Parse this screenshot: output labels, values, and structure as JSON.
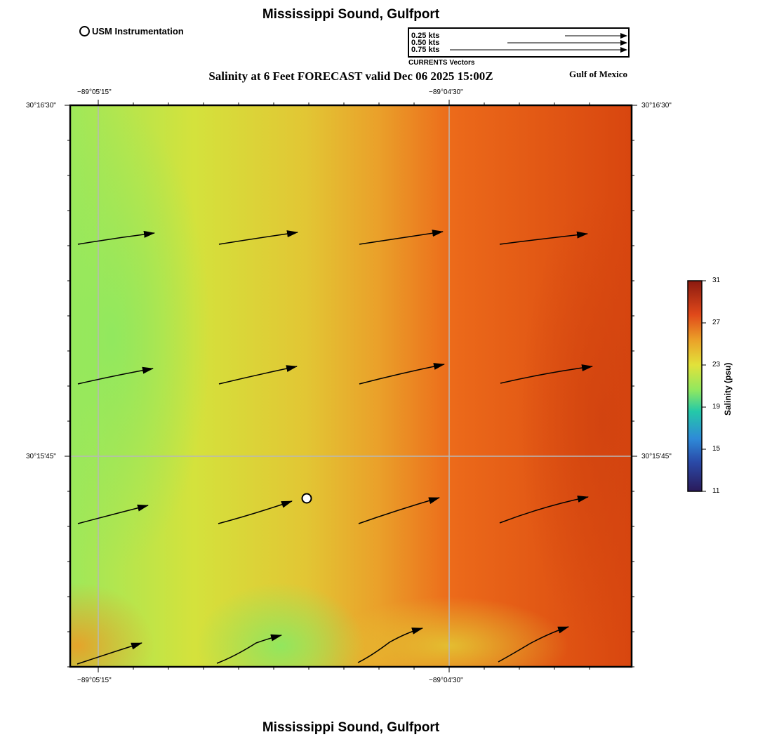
{
  "title": "Mississippi Sound, Gulfport",
  "footer_title": "Mississippi Sound, Gulfport",
  "subtitle": "Salinity at 6 Feet FORECAST valid Dec 06 2025 15:00Z",
  "region_label": "Gulf of Mexico",
  "instrument_legend": {
    "label": "USM Instrumentation",
    "icon": "open-circle-icon"
  },
  "vector_legend": {
    "caption": "CURRENTS Vectors",
    "entries": [
      "0.25 kts",
      "0.50 kts",
      "0.75 kts"
    ],
    "speeds_kts": [
      0.25,
      0.5,
      0.75
    ]
  },
  "axes": {
    "top_ticks": [
      "−89°05'15\"",
      "−89°04'30\""
    ],
    "bottom_ticks": [
      "−89°05'15\"",
      "−89°04'30\""
    ],
    "left_ticks": [
      "30°16'30\"",
      "30°15'45\""
    ],
    "right_ticks": [
      "30°16'30\"",
      "30°15'45\""
    ]
  },
  "colorbar": {
    "title": "Salinity (psu)",
    "ticks": [
      "31",
      "27",
      "23",
      "19",
      "15",
      "11"
    ],
    "min": 11,
    "max": 31,
    "colors": [
      "#2a1a5a",
      "#2e6fd8",
      "#24c9a8",
      "#8fe860",
      "#e2e23a",
      "#eb9a28",
      "#e0481a",
      "#8a1a10"
    ]
  },
  "salinity_colors": {
    "low": "#8fe860",
    "mid": "#e2dc3a",
    "orange": "#eb9a28",
    "high": "#e45a18",
    "highest": "#d8460f"
  }
}
